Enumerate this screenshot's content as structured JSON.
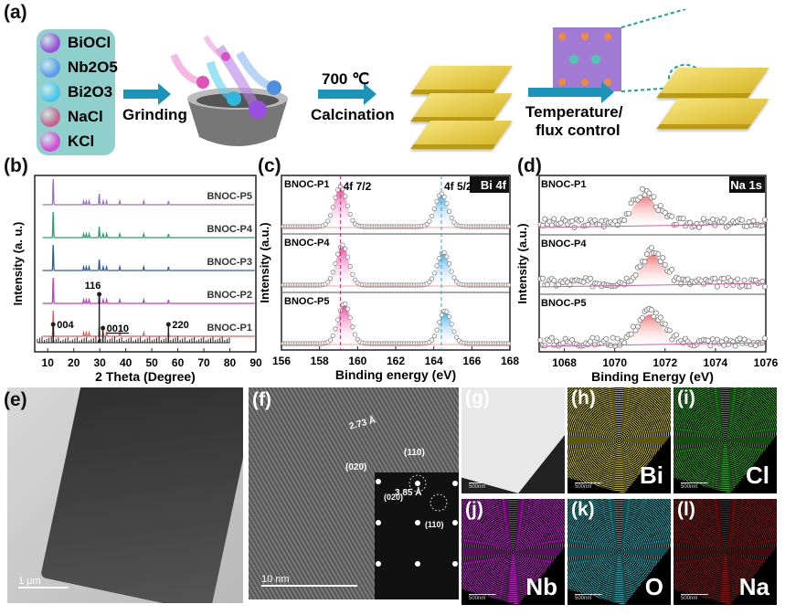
{
  "panels": {
    "a": "(a)",
    "b": "(b)",
    "c": "(c)",
    "d": "(d)",
    "e": "(e)",
    "f": "(f)",
    "g": "(g)",
    "h": "(h)",
    "i": "(i)",
    "j": "(j)",
    "k": "(k)",
    "l": "(l)"
  },
  "scheme": {
    "precursors": [
      {
        "name": "BiOCl",
        "color": "#9a55d6"
      },
      {
        "name": "Nb2O5",
        "color": "#5b9ee8"
      },
      {
        "name": "Bi2O3",
        "color": "#47c6ea"
      },
      {
        "name": "NaCl",
        "color": "#c2668f"
      },
      {
        "name": "KCl",
        "color": "#d24fd4"
      }
    ],
    "step1": "Grinding",
    "step2_top": "700 ℃",
    "step2": "Calcination",
    "step3_line1": "Temperature/",
    "step3_line2": "flux control"
  },
  "chart_data": [
    {
      "type": "line",
      "panel": "b",
      "xlabel": "2 Theta (Degree)",
      "ylabel": "Intensity (a. u.)",
      "xlim": [
        5,
        90
      ],
      "xticks": [
        10,
        20,
        30,
        40,
        50,
        60,
        70,
        80,
        90
      ],
      "series": [
        {
          "name": "BNOC-P5",
          "color": "#a070c0"
        },
        {
          "name": "BNOC-P4",
          "color": "#2e9e6a"
        },
        {
          "name": "BNOC-P3",
          "color": "#2a5fa8"
        },
        {
          "name": "BNOC-P2",
          "color": "#c040c0"
        },
        {
          "name": "BNOC-P1",
          "color": "#e06060"
        }
      ],
      "peaks": [
        12.1,
        23.8,
        24.8,
        25.9,
        29.8,
        31.3,
        32.6,
        37.7,
        46.9,
        56.4
      ],
      "reference": [
        {
          "x": 12.1,
          "label": "004"
        },
        {
          "x": 29.8,
          "label": "116"
        },
        {
          "x": 31.2,
          "label": "0010"
        },
        {
          "x": 56.4,
          "label": "220"
        }
      ]
    },
    {
      "type": "line",
      "panel": "c",
      "xlabel": "Binding energy (eV)",
      "ylabel": "Intensity (a.u.)",
      "title": "Bi 4f",
      "xlim": [
        156,
        168
      ],
      "xticks": [
        156,
        158,
        160,
        162,
        164,
        166,
        168
      ],
      "refs": [
        {
          "x": 159.1,
          "label": "4f 7/2"
        },
        {
          "x": 164.4,
          "label": "4f 5/2"
        }
      ],
      "series": [
        {
          "name": "BNOC-P1",
          "peaks": [
            159.1,
            164.4
          ]
        },
        {
          "name": "BNOC-P4",
          "peaks": [
            159.2,
            164.5
          ]
        },
        {
          "name": "BNOC-P5",
          "peaks": [
            159.3,
            164.6
          ]
        }
      ]
    },
    {
      "type": "scatter",
      "panel": "d",
      "xlabel": "Binding Energy (eV)",
      "ylabel": "Intensity (a.u.)",
      "title": "Na 1s",
      "xlim": [
        1067,
        1076
      ],
      "xticks": [
        1068,
        1070,
        1072,
        1074,
        1076
      ],
      "series": [
        {
          "name": "BNOC-P1",
          "peak": 1071.2
        },
        {
          "name": "BNOC-P4",
          "peak": 1071.5
        },
        {
          "name": "BNOC-P5",
          "peak": 1071.4
        }
      ]
    }
  ],
  "tem": {
    "scale_e": "1 μm",
    "scale_f": "10 nm",
    "d1": "2.73 Å",
    "d2": "3.85 Å",
    "p020": "(020)",
    "p110": "(110)",
    "saed020": "(020)",
    "saed110": "(110)"
  },
  "maps": [
    {
      "label": "",
      "scale": "500nm",
      "color": "#bbb"
    },
    {
      "label": "Bi",
      "scale": "500nm",
      "color": "#b8b020"
    },
    {
      "label": "Cl",
      "scale": "500nm",
      "color": "#2a9a20"
    },
    {
      "label": "Nb",
      "scale": "500nm",
      "color": "#b020b8"
    },
    {
      "label": "O",
      "scale": "500nm",
      "color": "#20a0a8"
    },
    {
      "label": "Na",
      "scale": "500nm",
      "color": "#7a1818"
    }
  ]
}
